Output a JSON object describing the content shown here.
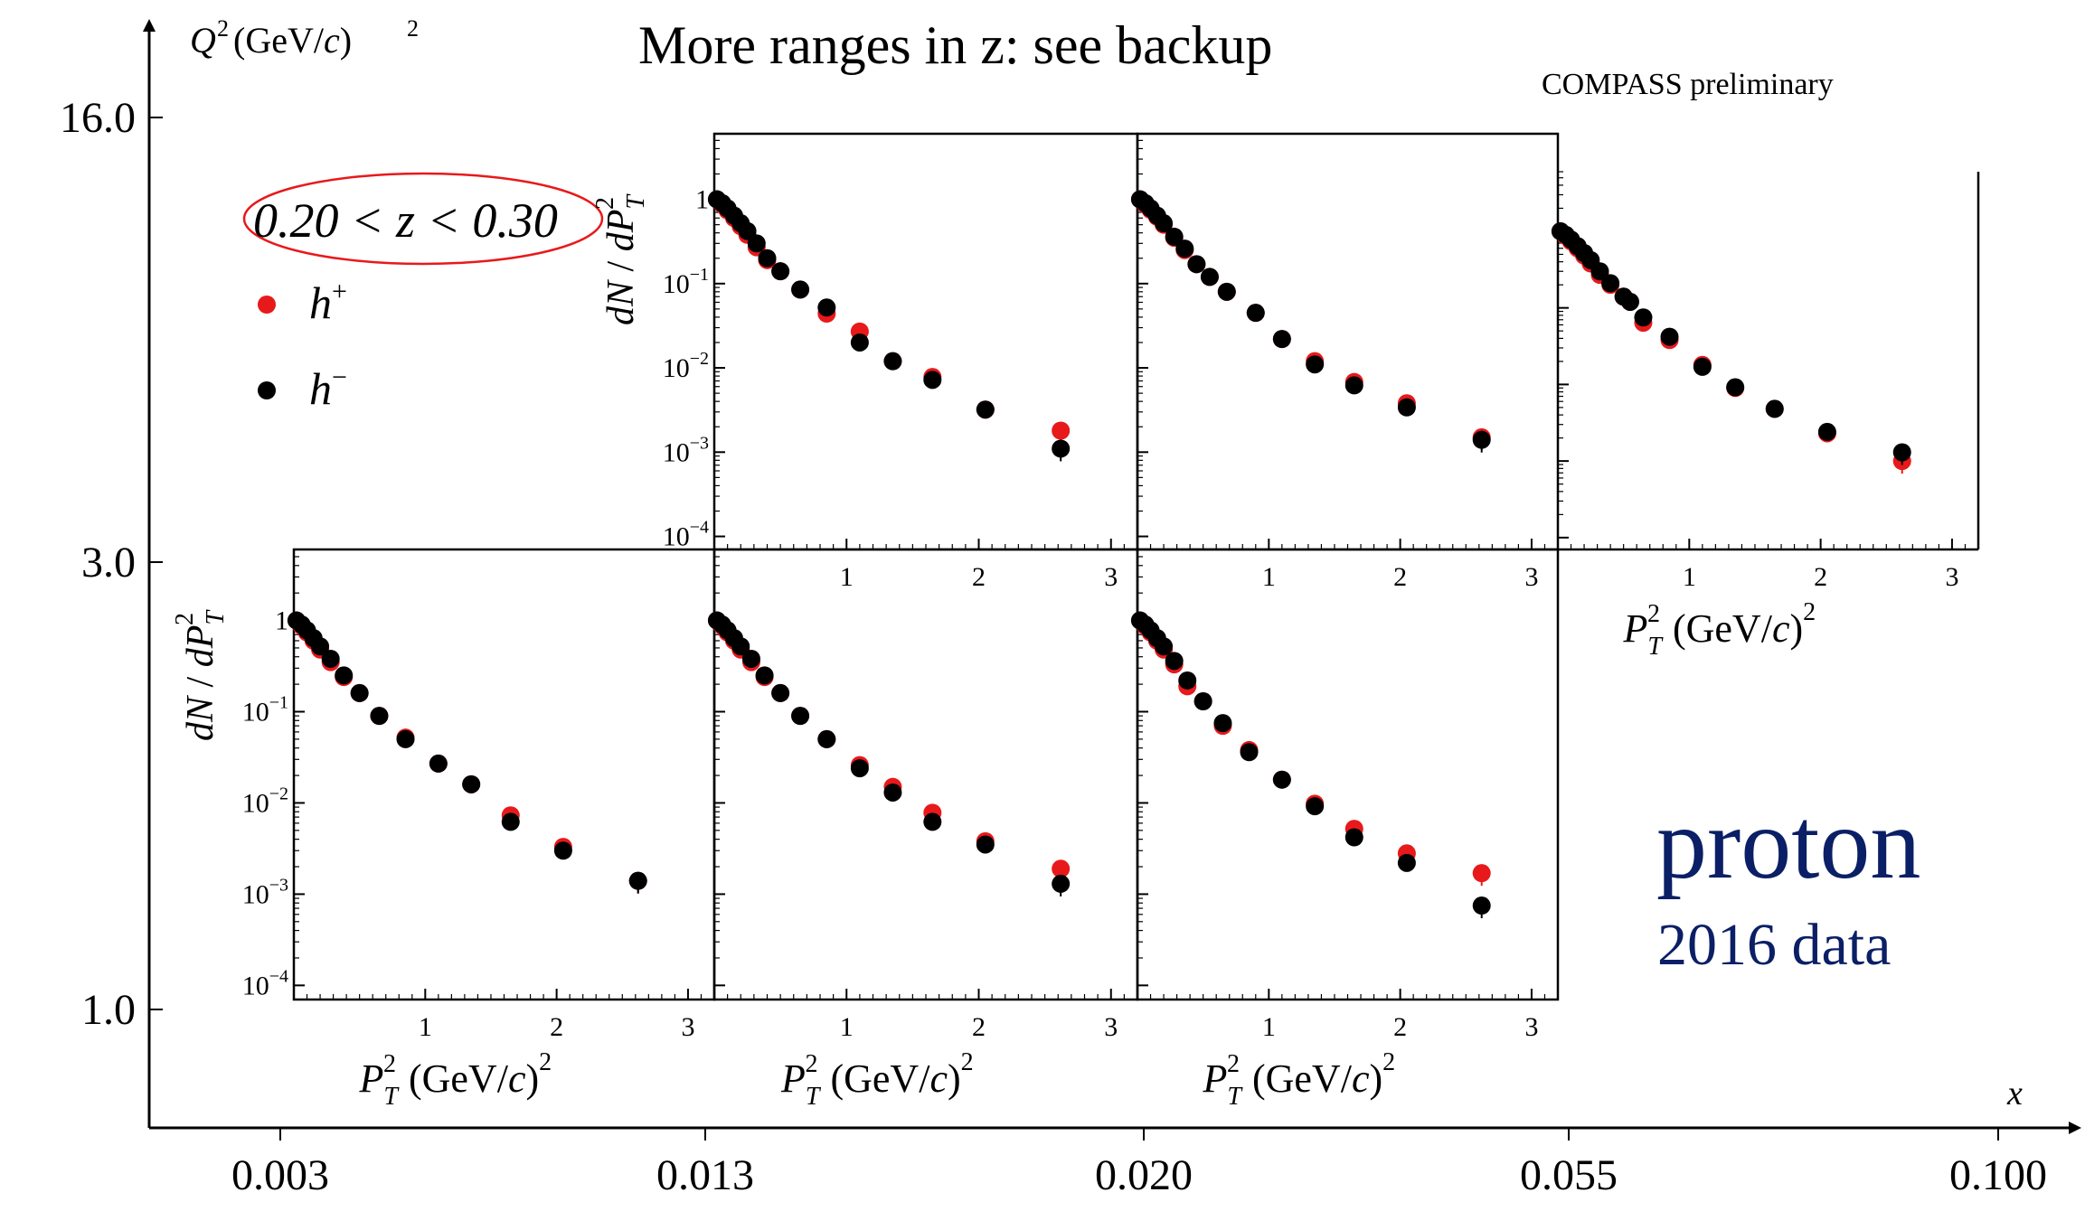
{
  "heading": "More ranges in z: see backup",
  "preliminary_label": "COMPASS preliminary",
  "target_label": "proton",
  "dataset_label": "2016 data",
  "legend": {
    "z_range": "0.20 < z < 0.30",
    "entries": [
      {
        "label": "h+",
        "color": "#e8191b"
      },
      {
        "label": "h−",
        "color": "#000000"
      }
    ]
  },
  "colors": {
    "h_plus": "#e8191b",
    "h_minus": "#000000",
    "highlight": "#e8191b",
    "accent": "#0b1f66"
  },
  "outer_axes": {
    "x_label": "x",
    "x_ticks": [
      "0.003",
      "0.013",
      "0.020",
      "0.055",
      "0.100"
    ],
    "y_label": "Q²(GeV/c)²",
    "y_ticks": [
      "1.0",
      "3.0",
      "16.0"
    ]
  },
  "chart_data": [
    {
      "type": "scatter",
      "bin": "0.013 < x < 0.020, 3.0 < Q² < 16.0",
      "yscale": "log",
      "xlim": [
        0,
        3.2
      ],
      "ylim": [
        7e-05,
        6
      ],
      "ylabel": "dN / dP_T^2",
      "xticks": [
        "1",
        "2",
        "3"
      ],
      "yticks": [
        "10^-4",
        "10^-3",
        "10^-2",
        "10^-1",
        "1"
      ],
      "series": [
        {
          "name": "h+",
          "color": "#e8191b",
          "x": [
            0.02,
            0.06,
            0.1,
            0.15,
            0.2,
            0.25,
            0.32,
            0.4,
            0.5,
            0.65,
            0.85,
            1.1,
            1.35,
            1.65,
            2.05,
            2.62
          ],
          "y": [
            1.0,
            0.87,
            0.74,
            0.6,
            0.48,
            0.38,
            0.27,
            0.19,
            0.14,
            0.085,
            0.044,
            0.027,
            0.012,
            0.0078,
            0.0032,
            0.0018
          ]
        },
        {
          "name": "h−",
          "color": "#000000",
          "x": [
            0.02,
            0.06,
            0.1,
            0.15,
            0.2,
            0.25,
            0.32,
            0.4,
            0.5,
            0.65,
            0.85,
            1.1,
            1.35,
            1.65,
            2.05,
            2.62
          ],
          "y": [
            1.0,
            0.9,
            0.78,
            0.64,
            0.52,
            0.42,
            0.3,
            0.2,
            0.14,
            0.085,
            0.052,
            0.02,
            0.012,
            0.0072,
            0.0032,
            0.0011
          ]
        }
      ]
    },
    {
      "type": "scatter",
      "bin": "0.020 < x < 0.055, 3.0 < Q² < 16.0",
      "yscale": "log",
      "xlim": [
        0,
        3.2
      ],
      "ylim": [
        7e-05,
        6
      ],
      "xticks": [
        "1",
        "2",
        "3"
      ],
      "series": [
        {
          "name": "h+",
          "color": "#e8191b",
          "x": [
            0.02,
            0.06,
            0.1,
            0.15,
            0.2,
            0.28,
            0.36,
            0.45,
            0.55,
            0.68,
            0.9,
            1.1,
            1.35,
            1.65,
            2.05,
            2.62
          ],
          "y": [
            1.0,
            0.87,
            0.75,
            0.62,
            0.5,
            0.35,
            0.25,
            0.17,
            0.12,
            0.08,
            0.045,
            0.022,
            0.012,
            0.0068,
            0.0038,
            0.0015
          ]
        },
        {
          "name": "h−",
          "color": "#000000",
          "x": [
            0.02,
            0.06,
            0.1,
            0.15,
            0.2,
            0.28,
            0.36,
            0.45,
            0.55,
            0.68,
            0.9,
            1.1,
            1.35,
            1.65,
            2.05,
            2.62
          ],
          "y": [
            1.0,
            0.9,
            0.78,
            0.64,
            0.52,
            0.36,
            0.26,
            0.17,
            0.12,
            0.08,
            0.045,
            0.022,
            0.011,
            0.0062,
            0.0034,
            0.0014
          ]
        }
      ]
    },
    {
      "type": "scatter",
      "bin": "0.055 < x < 0.100, 3.0 < Q² < 16.0",
      "yscale": "log",
      "xlim": [
        0,
        3.2
      ],
      "ylim": [
        7e-05,
        6
      ],
      "xlabel": "P_T^2 (GeV/c)^2",
      "xticks": [
        "1",
        "2",
        "3"
      ],
      "series": [
        {
          "name": "h+",
          "color": "#e8191b",
          "x": [
            0.02,
            0.06,
            0.1,
            0.15,
            0.2,
            0.25,
            0.32,
            0.4,
            0.5,
            0.55,
            0.65,
            0.85,
            1.1,
            1.35,
            1.65,
            2.05,
            2.62
          ],
          "y": [
            1.0,
            0.87,
            0.74,
            0.6,
            0.48,
            0.38,
            0.27,
            0.2,
            0.14,
            0.12,
            0.064,
            0.038,
            0.018,
            0.009,
            0.0048,
            0.0023,
            0.001
          ]
        },
        {
          "name": "h−",
          "color": "#000000",
          "x": [
            0.02,
            0.06,
            0.1,
            0.15,
            0.2,
            0.25,
            0.32,
            0.4,
            0.5,
            0.55,
            0.65,
            0.85,
            1.1,
            1.35,
            1.65,
            2.05,
            2.62
          ],
          "y": [
            1.0,
            0.9,
            0.78,
            0.64,
            0.52,
            0.42,
            0.3,
            0.21,
            0.14,
            0.12,
            0.075,
            0.042,
            0.017,
            0.0092,
            0.0048,
            0.0024,
            0.0013
          ]
        }
      ]
    },
    {
      "type": "scatter",
      "bin": "0.003 < x < 0.013, 1.0 < Q² < 3.0",
      "yscale": "log",
      "xlim": [
        0,
        3.2
      ],
      "ylim": [
        7e-05,
        6
      ],
      "xlabel": "P_T^2 (GeV/c)^2",
      "ylabel": "dN / dP_T^2",
      "xticks": [
        "1",
        "2",
        "3"
      ],
      "yticks": [
        "10^-4",
        "10^-3",
        "10^-2",
        "10^-1",
        "1"
      ],
      "series": [
        {
          "name": "h+",
          "color": "#e8191b",
          "x": [
            0.02,
            0.06,
            0.1,
            0.15,
            0.2,
            0.28,
            0.38,
            0.5,
            0.65,
            0.85,
            1.1,
            1.35,
            1.65,
            2.05,
            2.62
          ],
          "y": [
            1.0,
            0.87,
            0.74,
            0.6,
            0.48,
            0.35,
            0.24,
            0.16,
            0.09,
            0.052,
            0.027,
            0.016,
            0.0073,
            0.0033,
            0.0014
          ]
        },
        {
          "name": "h−",
          "color": "#000000",
          "x": [
            0.02,
            0.06,
            0.1,
            0.15,
            0.2,
            0.28,
            0.38,
            0.5,
            0.65,
            0.85,
            1.1,
            1.35,
            1.65,
            2.05,
            2.62
          ],
          "y": [
            1.0,
            0.9,
            0.78,
            0.64,
            0.52,
            0.38,
            0.25,
            0.16,
            0.09,
            0.05,
            0.027,
            0.016,
            0.0062,
            0.003,
            0.0014
          ]
        }
      ]
    },
    {
      "type": "scatter",
      "bin": "0.013 < x < 0.020, 1.0 < Q² < 3.0",
      "yscale": "log",
      "xlim": [
        0,
        3.2
      ],
      "ylim": [
        7e-05,
        6
      ],
      "xlabel": "P_T^2 (GeV/c)^2",
      "xticks": [
        "1",
        "2",
        "3"
      ],
      "series": [
        {
          "name": "h+",
          "color": "#e8191b",
          "x": [
            0.02,
            0.06,
            0.1,
            0.15,
            0.2,
            0.28,
            0.38,
            0.5,
            0.65,
            0.85,
            1.1,
            1.35,
            1.65,
            2.05,
            2.62
          ],
          "y": [
            1.0,
            0.87,
            0.74,
            0.6,
            0.48,
            0.35,
            0.24,
            0.16,
            0.09,
            0.05,
            0.026,
            0.015,
            0.0078,
            0.0038,
            0.0019
          ]
        },
        {
          "name": "h−",
          "color": "#000000",
          "x": [
            0.02,
            0.06,
            0.1,
            0.15,
            0.2,
            0.28,
            0.38,
            0.5,
            0.65,
            0.85,
            1.1,
            1.35,
            1.65,
            2.05,
            2.62
          ],
          "y": [
            1.0,
            0.9,
            0.78,
            0.64,
            0.52,
            0.38,
            0.25,
            0.16,
            0.09,
            0.05,
            0.024,
            0.013,
            0.0062,
            0.0035,
            0.0013
          ]
        }
      ]
    },
    {
      "type": "scatter",
      "bin": "0.020 < x < 0.055, 1.0 < Q² < 3.0",
      "yscale": "log",
      "xlim": [
        0,
        3.2
      ],
      "ylim": [
        7e-05,
        6
      ],
      "xlabel": "P_T^2 (GeV/c)^2",
      "xticks": [
        "1",
        "2",
        "3"
      ],
      "series": [
        {
          "name": "h+",
          "color": "#e8191b",
          "x": [
            0.02,
            0.06,
            0.1,
            0.15,
            0.2,
            0.28,
            0.38,
            0.5,
            0.65,
            0.85,
            1.1,
            1.35,
            1.65,
            2.05,
            2.62
          ],
          "y": [
            1.0,
            0.87,
            0.74,
            0.6,
            0.48,
            0.33,
            0.19,
            0.13,
            0.07,
            0.038,
            0.018,
            0.0098,
            0.0052,
            0.0028,
            0.0017
          ]
        },
        {
          "name": "h−",
          "color": "#000000",
          "x": [
            0.02,
            0.06,
            0.1,
            0.15,
            0.2,
            0.28,
            0.38,
            0.5,
            0.65,
            0.85,
            1.1,
            1.35,
            1.65,
            2.05,
            2.62
          ],
          "y": [
            1.0,
            0.9,
            0.78,
            0.64,
            0.52,
            0.36,
            0.22,
            0.13,
            0.075,
            0.036,
            0.018,
            0.0092,
            0.0042,
            0.0022,
            0.00075
          ]
        }
      ]
    }
  ]
}
